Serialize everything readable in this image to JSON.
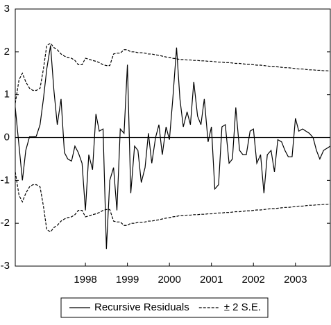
{
  "chart_data": {
    "type": "line",
    "x": [
      1996.83,
      1996.92,
      1997.0,
      1997.08,
      1997.17,
      1997.25,
      1997.33,
      1997.42,
      1997.5,
      1997.58,
      1997.67,
      1997.75,
      1997.83,
      1997.92,
      1998.0,
      1998.08,
      1998.17,
      1998.25,
      1998.33,
      1998.42,
      1998.5,
      1998.58,
      1998.67,
      1998.75,
      1998.83,
      1998.92,
      1999.0,
      1999.08,
      1999.17,
      1999.25,
      1999.33,
      1999.42,
      1999.5,
      1999.58,
      1999.67,
      1999.75,
      1999.83,
      1999.92,
      2000.0,
      2000.08,
      2000.17,
      2000.25,
      2000.33,
      2000.42,
      2000.5,
      2000.58,
      2000.67,
      2000.75,
      2000.83,
      2000.92,
      2001.0,
      2001.08,
      2001.17,
      2001.25,
      2001.33,
      2001.42,
      2001.5,
      2001.58,
      2001.67,
      2001.75,
      2001.83,
      2001.92,
      2002.0,
      2002.08,
      2002.17,
      2002.25,
      2002.33,
      2002.42,
      2002.5,
      2002.58,
      2002.67,
      2002.75,
      2002.83,
      2002.92,
      2003.0,
      2003.08,
      2003.17,
      2003.25,
      2003.33,
      2003.42,
      2003.5,
      2003.58,
      2003.67,
      2003.75,
      2003.83,
      2003.92,
      2004.0,
      2004.08,
      2004.17,
      2004.25,
      2004.33
    ],
    "series": [
      {
        "name": "Recursive Residuals",
        "color": "#000000",
        "dash": "none",
        "values": [
          0.7,
          -0.2,
          -1.0,
          -0.3,
          0.02,
          0.02,
          0.03,
          0.3,
          0.9,
          1.6,
          2.15,
          1.1,
          0.3,
          0.9,
          -0.35,
          -0.5,
          -0.55,
          -0.2,
          -0.35,
          -0.6,
          -1.7,
          -0.4,
          -0.75,
          0.55,
          0.15,
          0.2,
          -2.6,
          -1.0,
          -0.7,
          -1.7,
          0.2,
          0.1,
          1.7,
          -1.3,
          -0.2,
          -0.3,
          -1.05,
          -0.7,
          0.1,
          -0.6,
          0.0,
          0.3,
          -0.4,
          0.25,
          -0.05,
          0.9,
          2.1,
          0.9,
          0.25,
          0.6,
          0.3,
          1.3,
          0.5,
          0.3,
          0.9,
          -0.1,
          0.25,
          -1.2,
          -1.1,
          0.25,
          0.3,
          -0.6,
          -0.5,
          0.7,
          -0.3,
          -0.4,
          -0.4,
          0.15,
          0.2,
          -0.6,
          -0.4,
          -1.3,
          -0.4,
          -0.3,
          -0.8,
          -0.05,
          -0.1,
          -0.3,
          -0.45,
          -0.45,
          0.45,
          0.15,
          0.2,
          0.15,
          0.1,
          0.0,
          -0.3,
          -0.5,
          -0.3,
          -0.25,
          -0.2
        ]
      },
      {
        "name": "± 2 S.E.",
        "color": "#000000",
        "dash": "4,2",
        "values": [
          0.8,
          1.35,
          1.5,
          1.3,
          1.15,
          1.1,
          1.1,
          1.15,
          1.6,
          2.15,
          2.2,
          2.1,
          2.05,
          1.95,
          1.9,
          1.87,
          1.85,
          1.8,
          1.7,
          1.7,
          1.85,
          1.83,
          1.8,
          1.78,
          1.75,
          1.7,
          1.68,
          1.68,
          1.95,
          1.97,
          1.97,
          2.05,
          2.05,
          2.0,
          2.0,
          1.98,
          1.98,
          1.97,
          1.95,
          1.95,
          1.93,
          1.92,
          1.9,
          1.88,
          1.87,
          1.85,
          1.84,
          1.82,
          1.82,
          1.81,
          1.81,
          1.8,
          1.8,
          1.79,
          1.79,
          1.78,
          1.78,
          1.77,
          1.76,
          1.76,
          1.75,
          1.75,
          1.74,
          1.73,
          1.73,
          1.72,
          1.71,
          1.71,
          1.7,
          1.69,
          1.69,
          1.68,
          1.67,
          1.66,
          1.66,
          1.65,
          1.64,
          1.63,
          1.63,
          1.62,
          1.61,
          1.6,
          1.6,
          1.59,
          1.58,
          1.58,
          1.57,
          1.57,
          1.56,
          1.56,
          1.55
        ],
        "lower": [
          -0.8,
          -1.35,
          -1.5,
          -1.3,
          -1.15,
          -1.1,
          -1.1,
          -1.15,
          -1.6,
          -2.15,
          -2.2,
          -2.1,
          -2.05,
          -1.95,
          -1.9,
          -1.87,
          -1.85,
          -1.8,
          -1.7,
          -1.7,
          -1.85,
          -1.83,
          -1.8,
          -1.78,
          -1.75,
          -1.7,
          -1.68,
          -1.68,
          -1.95,
          -1.97,
          -1.97,
          -2.05,
          -2.05,
          -2.0,
          -2.0,
          -1.98,
          -1.98,
          -1.97,
          -1.95,
          -1.95,
          -1.93,
          -1.92,
          -1.9,
          -1.88,
          -1.87,
          -1.85,
          -1.84,
          -1.82,
          -1.82,
          -1.81,
          -1.81,
          -1.8,
          -1.8,
          -1.79,
          -1.79,
          -1.78,
          -1.78,
          -1.77,
          -1.76,
          -1.76,
          -1.75,
          -1.75,
          -1.74,
          -1.73,
          -1.73,
          -1.72,
          -1.71,
          -1.71,
          -1.7,
          -1.69,
          -1.69,
          -1.68,
          -1.67,
          -1.66,
          -1.66,
          -1.65,
          -1.64,
          -1.63,
          -1.63,
          -1.62,
          -1.61,
          -1.6,
          -1.6,
          -1.59,
          -1.58,
          -1.58,
          -1.57,
          -1.57,
          -1.56,
          -1.56,
          -1.55
        ]
      }
    ],
    "xlim": [
      1996.83,
      2004.33
    ],
    "xticks": [
      {
        "value": 1998.5,
        "label": "1998"
      },
      {
        "value": 1999.5,
        "label": "1999"
      },
      {
        "value": 2000.5,
        "label": "2000"
      },
      {
        "value": 2001.5,
        "label": "2001"
      },
      {
        "value": 2002.5,
        "label": "2002"
      },
      {
        "value": 2003.5,
        "label": "2003"
      }
    ],
    "ylim": [
      -3,
      3
    ],
    "yticks": [
      -3,
      -2,
      -1,
      0,
      1,
      2,
      3
    ],
    "legend": "bottom"
  }
}
